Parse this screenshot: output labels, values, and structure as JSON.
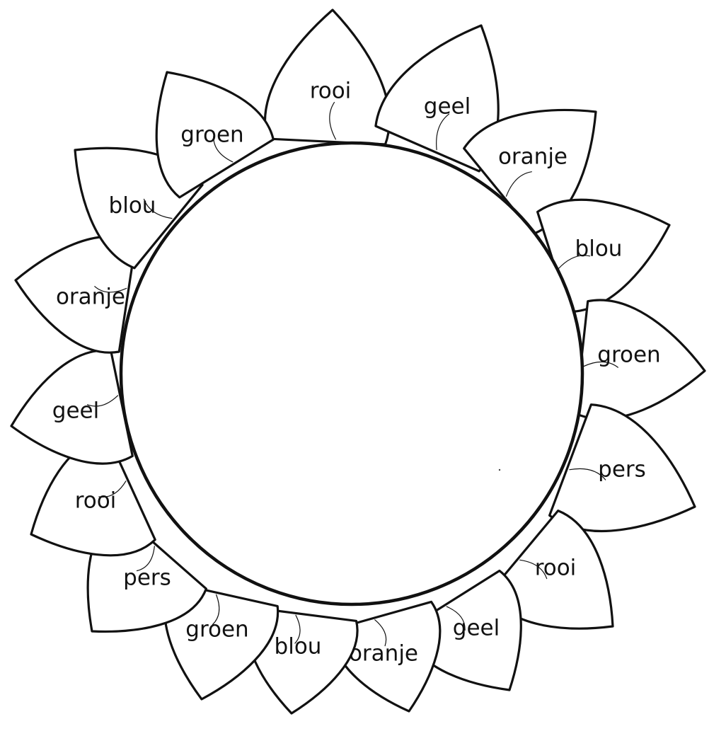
{
  "title": "",
  "petals": [
    {
      "label": "rooi"
    },
    {
      "label": "geel"
    },
    {
      "label": "oranje"
    },
    {
      "label": "blou"
    },
    {
      "label": "groen"
    },
    {
      "label": "pers"
    },
    {
      "label": "rooi"
    },
    {
      "label": "geel"
    },
    {
      "label": "oranje"
    },
    {
      "label": "blou"
    },
    {
      "label": "groen"
    },
    {
      "label": "pers"
    },
    {
      "label": "rooi"
    },
    {
      "label": "geel"
    },
    {
      "label": "oranje"
    },
    {
      "label": "blou"
    },
    {
      "label": "groen"
    }
  ],
  "colors": {
    "line": "#111111",
    "background": "#ffffff"
  }
}
